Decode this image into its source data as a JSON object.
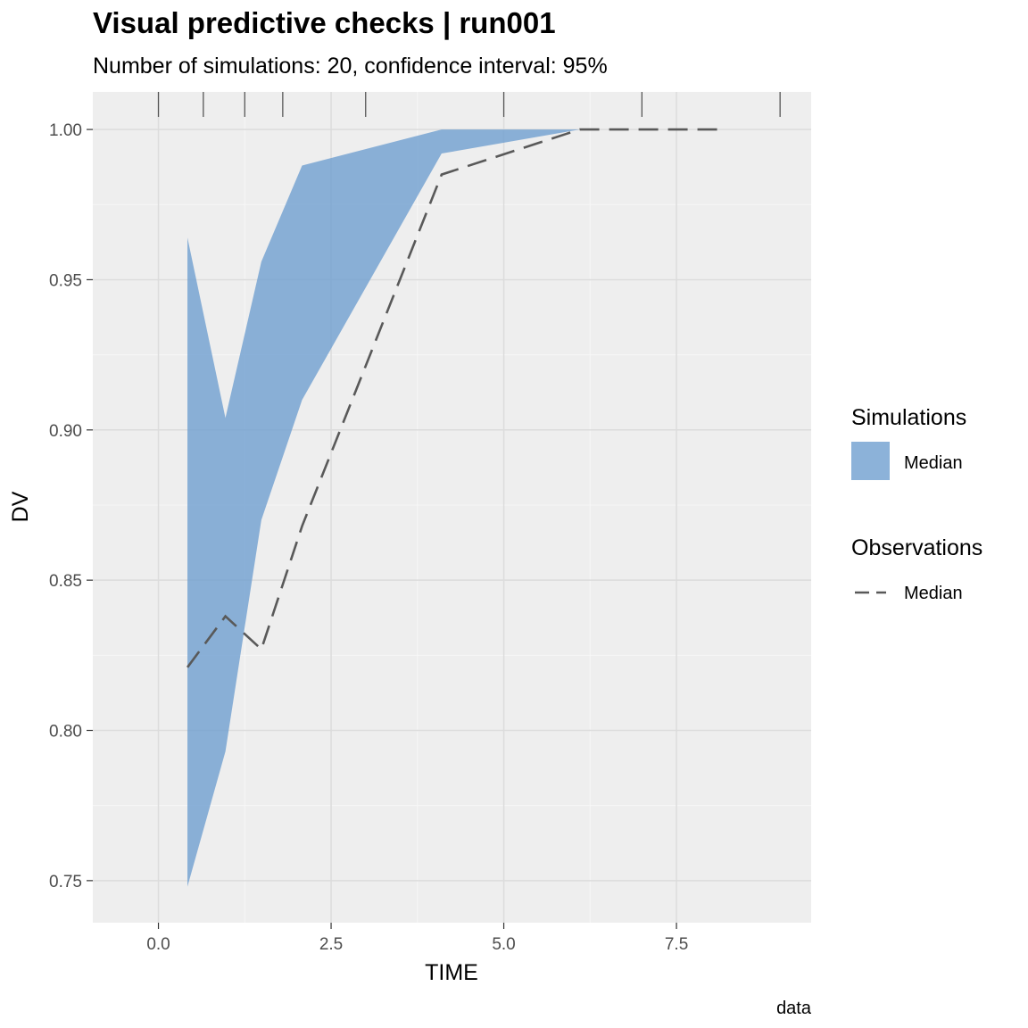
{
  "chart_data": {
    "type": "area",
    "title": "Visual predictive checks | run001",
    "subtitle": "Number of simulations: 20, confidence interval: 95%",
    "xlabel": "TIME",
    "ylabel": "DV",
    "caption": "data",
    "xlim": [
      -0.95,
      9.45
    ],
    "ylim": [
      0.736,
      1.0125
    ],
    "x_ticks": [
      0.0,
      2.5,
      5.0,
      7.5
    ],
    "x_tick_labels": [
      "0.0",
      "2.5",
      "5.0",
      "7.5"
    ],
    "y_ticks": [
      0.75,
      0.8,
      0.85,
      0.9,
      0.95,
      1.0
    ],
    "y_tick_labels": [
      "0.75",
      "0.80",
      "0.85",
      "0.90",
      "0.95",
      "1.00"
    ],
    "grid": true,
    "bin_boundaries": [
      0.0,
      0.65,
      1.25,
      1.8,
      3.0,
      5.0,
      7.0,
      9.0
    ],
    "series": [
      {
        "name": "Median",
        "group": "Simulations",
        "kind": "ribbon",
        "color": "#6f9fd0",
        "x": [
          0.42,
          0.97,
          1.49,
          2.08,
          4.1,
          6.1
        ],
        "lower": [
          0.748,
          0.793,
          0.87,
          0.91,
          0.992,
          1.0
        ],
        "upper": [
          0.964,
          0.904,
          0.956,
          0.988,
          1.0,
          1.0
        ]
      },
      {
        "name": "Median",
        "group": "Observations",
        "kind": "line",
        "color": "#595959",
        "dash": "longdash",
        "x": [
          0.42,
          0.97,
          1.49,
          2.08,
          4.1,
          6.1,
          8.1
        ],
        "values": [
          0.821,
          0.838,
          0.827,
          0.868,
          0.985,
          1.0,
          1.0
        ]
      }
    ],
    "legend": {
      "position": "right",
      "groups": [
        {
          "title": "Simulations",
          "label": "Median"
        },
        {
          "title": "Observations",
          "label": "Median"
        }
      ]
    }
  }
}
